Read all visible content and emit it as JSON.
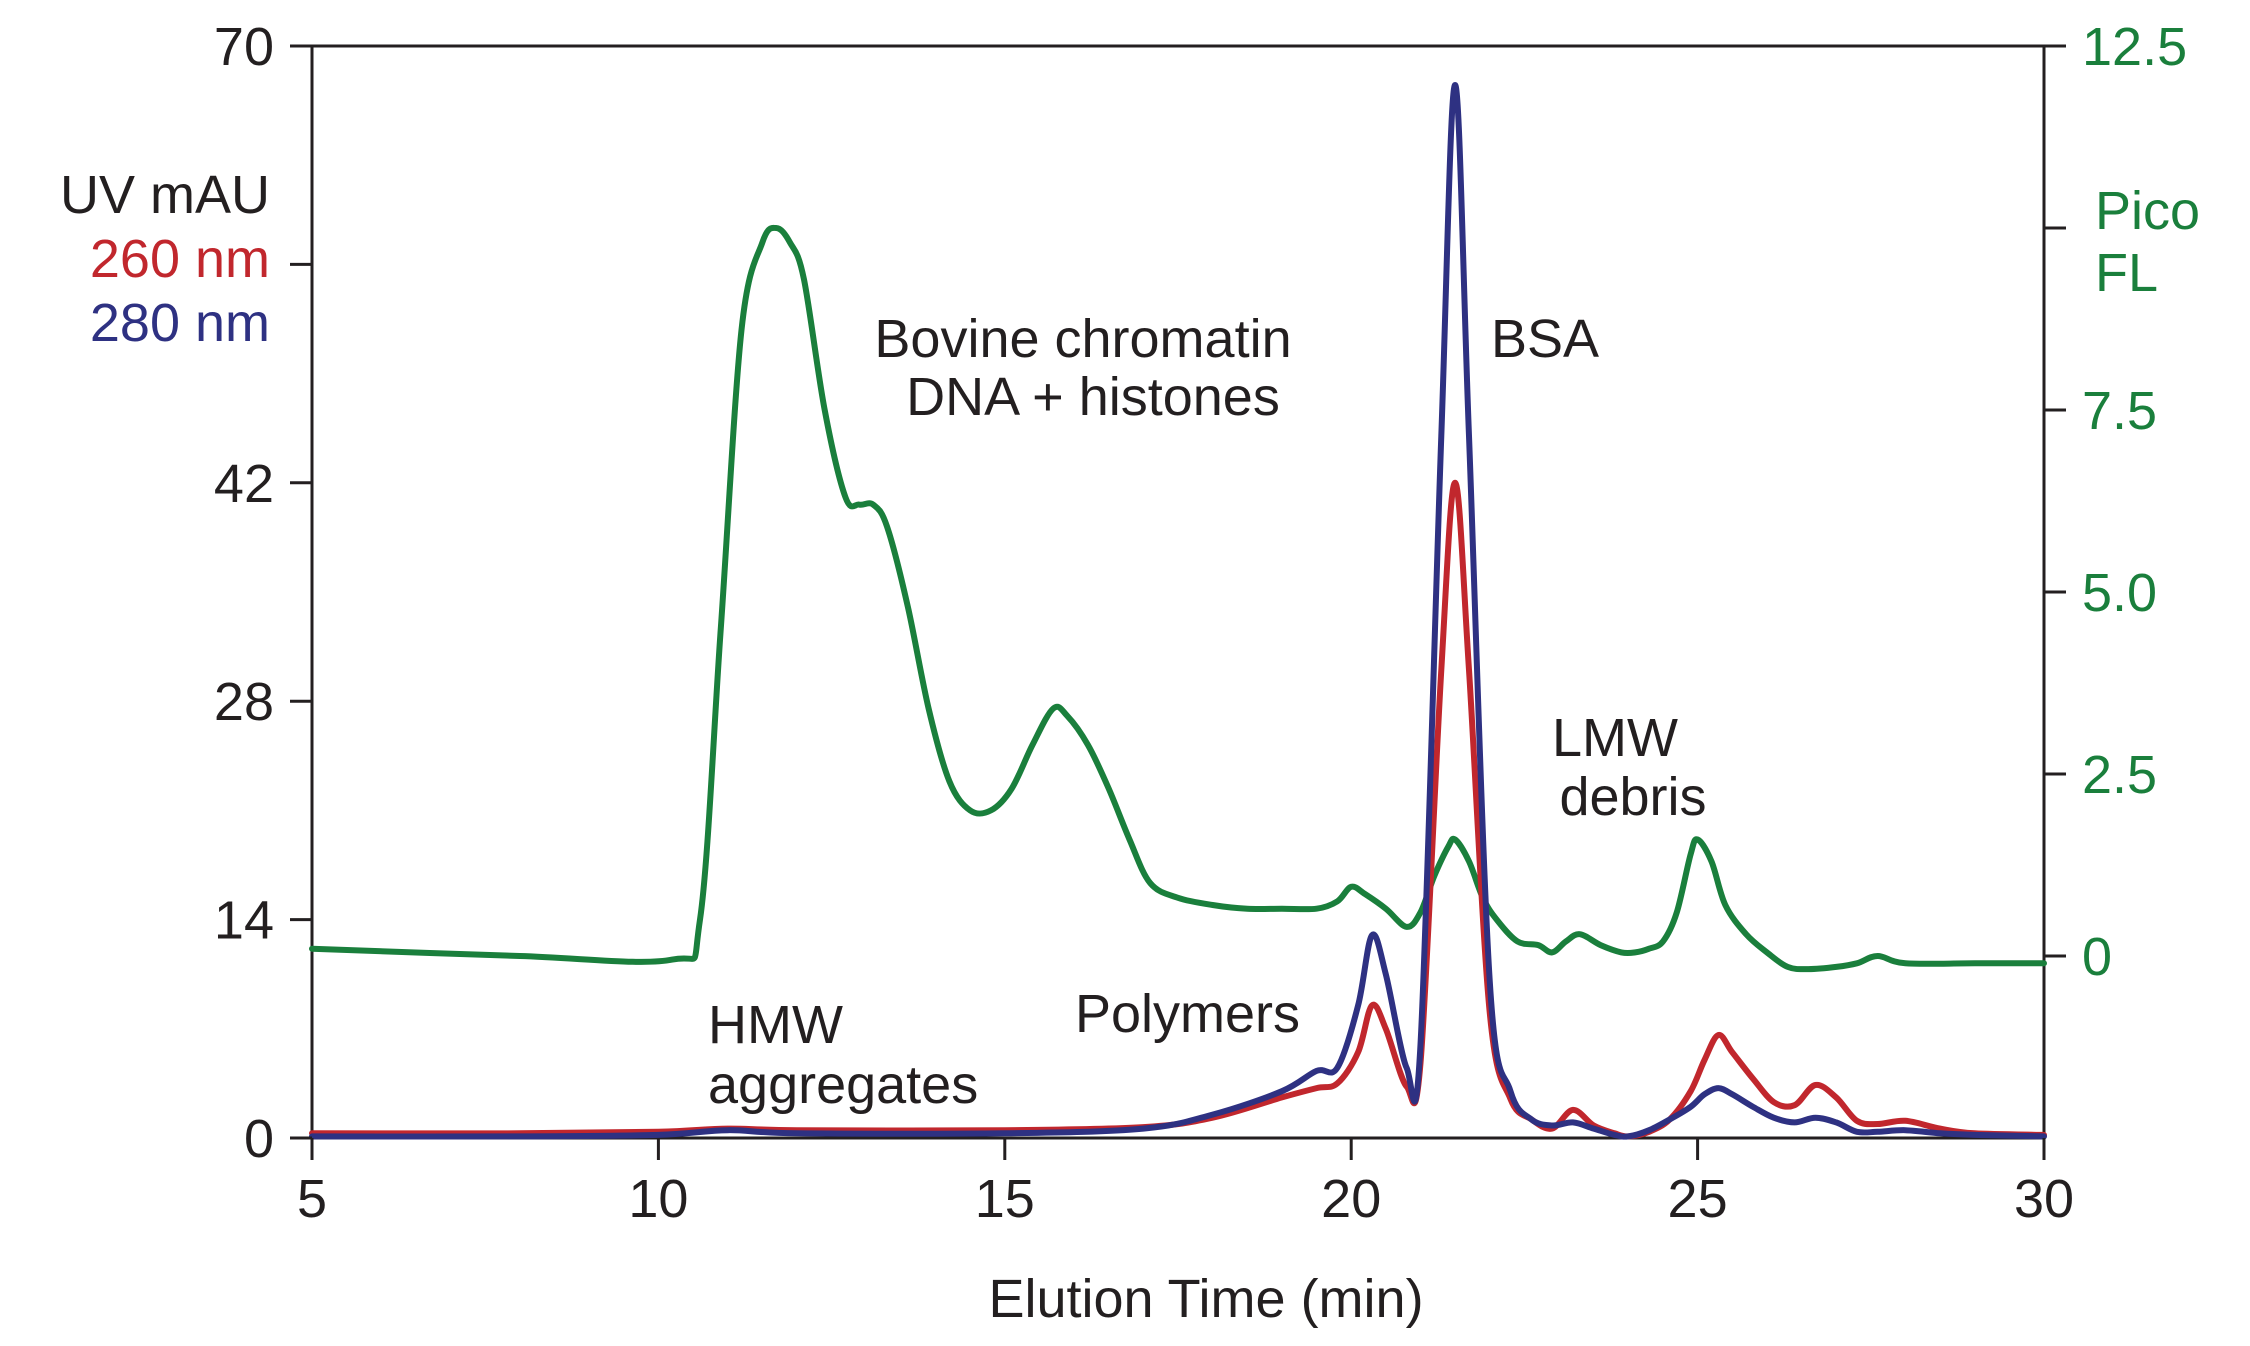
{
  "chart_data": {
    "type": "line",
    "title": "",
    "xlabel": "Elution Time (min)",
    "xlim": [
      5,
      30
    ],
    "x_ticks": [
      "5",
      "10",
      "15",
      "20",
      "25",
      "30"
    ],
    "ylabel_left": [
      "UV mAU",
      "260 nm",
      "280 nm"
    ],
    "ylim_left": [
      0,
      70
    ],
    "y_ticks_left": [
      "0",
      "14",
      "28",
      "42",
      "70"
    ],
    "y_tick_marks_left": [
      0,
      14,
      28,
      42,
      56,
      70
    ],
    "ylabel_right": [
      "Pico",
      "FL"
    ],
    "ylim_right": [
      -2.5,
      12.5
    ],
    "y_ticks_right": [
      "0",
      "2.5",
      "5.0",
      "7.5",
      "12.5"
    ],
    "y_tick_marks_right": [
      0,
      2.5,
      5.0,
      7.5,
      10,
      12.5
    ],
    "grid": false,
    "legend": "none",
    "annotations": [
      {
        "lines": [
          "Bovine chromatin",
          "DNA + histones"
        ]
      },
      {
        "lines": [
          "BSA"
        ]
      },
      {
        "lines": [
          "LMW",
          "debris"
        ]
      },
      {
        "lines": [
          "HMW",
          "aggregates"
        ]
      },
      {
        "lines": [
          "Polymers"
        ]
      }
    ],
    "series": [
      {
        "label": "260 nm",
        "axis": "left",
        "color": "#c1272d",
        "x": [
          5,
          8,
          10,
          11,
          12,
          15,
          17,
          18,
          19,
          19.5,
          19.8,
          20.1,
          20.3,
          20.5,
          20.8,
          21.0,
          21.3,
          21.5,
          21.7,
          22.0,
          22.3,
          22.6,
          22.9,
          23.2,
          23.5,
          23.8,
          24.0,
          24.3,
          24.6,
          24.9,
          25.1,
          25.3,
          25.5,
          25.8,
          26.1,
          26.4,
          26.7,
          27.0,
          27.3,
          27.6,
          28.0,
          28.5,
          29.0,
          30.0
        ],
        "y": [
          0.3,
          0.3,
          0.4,
          0.6,
          0.5,
          0.5,
          0.7,
          1.3,
          2.6,
          3.2,
          3.5,
          5.5,
          8.5,
          7.0,
          3.3,
          4.8,
          30.0,
          42.0,
          30.0,
          8.0,
          2.5,
          1.2,
          0.6,
          1.8,
          0.8,
          0.3,
          0.1,
          0.4,
          1.2,
          3.0,
          5.0,
          6.6,
          5.5,
          3.8,
          2.3,
          2.1,
          3.4,
          2.6,
          1.1,
          0.9,
          1.1,
          0.6,
          0.3,
          0.2
        ]
      },
      {
        "label": "280 nm",
        "axis": "left",
        "color": "#2e3182",
        "x": [
          5,
          8,
          10,
          11,
          12,
          15,
          17,
          18,
          19,
          19.5,
          19.8,
          20.1,
          20.3,
          20.5,
          20.8,
          21.0,
          21.3,
          21.5,
          21.7,
          22.0,
          22.3,
          22.6,
          22.9,
          23.2,
          23.5,
          23.8,
          24.0,
          24.3,
          24.6,
          24.9,
          25.1,
          25.3,
          25.5,
          25.8,
          26.1,
          26.4,
          26.7,
          27.0,
          27.3,
          27.6,
          28.0,
          28.5,
          29.0,
          30.0
        ],
        "y": [
          0.1,
          0.1,
          0.2,
          0.5,
          0.3,
          0.3,
          0.6,
          1.5,
          3.0,
          4.3,
          4.5,
          8.5,
          13.0,
          10.5,
          4.5,
          6.0,
          45.0,
          67.5,
          45.0,
          10.0,
          3.0,
          1.2,
          0.8,
          1.0,
          0.6,
          0.2,
          0.1,
          0.5,
          1.2,
          2.0,
          2.8,
          3.2,
          2.8,
          2.0,
          1.3,
          1.0,
          1.3,
          1.0,
          0.4,
          0.4,
          0.5,
          0.3,
          0.2,
          0.1
        ]
      },
      {
        "label": "Pico FL",
        "axis": "right",
        "color": "#1a7f3c",
        "x": [
          5,
          8,
          10.2,
          10.6,
          10.9,
          11.2,
          11.5,
          11.7,
          11.9,
          12.1,
          12.4,
          12.7,
          12.9,
          13.1,
          13.3,
          13.6,
          13.9,
          14.2,
          14.5,
          14.8,
          15.1,
          15.4,
          15.7,
          15.9,
          16.2,
          16.5,
          16.8,
          17.1,
          17.5,
          18.0,
          18.5,
          19.0,
          19.5,
          19.8,
          20.0,
          20.2,
          20.5,
          20.8,
          21.0,
          21.2,
          21.4,
          21.5,
          21.7,
          21.9,
          22.1,
          22.4,
          22.7,
          22.9,
          23.1,
          23.3,
          23.6,
          23.9,
          24.1,
          24.3,
          24.5,
          24.7,
          24.9,
          25.0,
          25.2,
          25.4,
          25.7,
          26.0,
          26.3,
          26.6,
          27.0,
          27.3,
          27.6,
          28.0,
          29.0,
          30.0
        ],
        "y": [
          0.1,
          0.0,
          -0.05,
          0.5,
          4.5,
          8.6,
          9.8,
          10.0,
          9.8,
          9.3,
          7.5,
          6.3,
          6.2,
          6.2,
          5.9,
          4.8,
          3.4,
          2.4,
          2.0,
          2.0,
          2.3,
          2.9,
          3.4,
          3.3,
          2.9,
          2.3,
          1.6,
          1.0,
          0.8,
          0.7,
          0.65,
          0.65,
          0.65,
          0.75,
          0.95,
          0.85,
          0.65,
          0.4,
          0.6,
          1.1,
          1.5,
          1.6,
          1.3,
          0.8,
          0.5,
          0.2,
          0.15,
          0.05,
          0.2,
          0.3,
          0.15,
          0.05,
          0.05,
          0.1,
          0.2,
          0.6,
          1.4,
          1.6,
          1.3,
          0.7,
          0.3,
          0.05,
          -0.15,
          -0.18,
          -0.15,
          -0.1,
          0.0,
          -0.1,
          -0.1,
          -0.1
        ]
      }
    ]
  }
}
